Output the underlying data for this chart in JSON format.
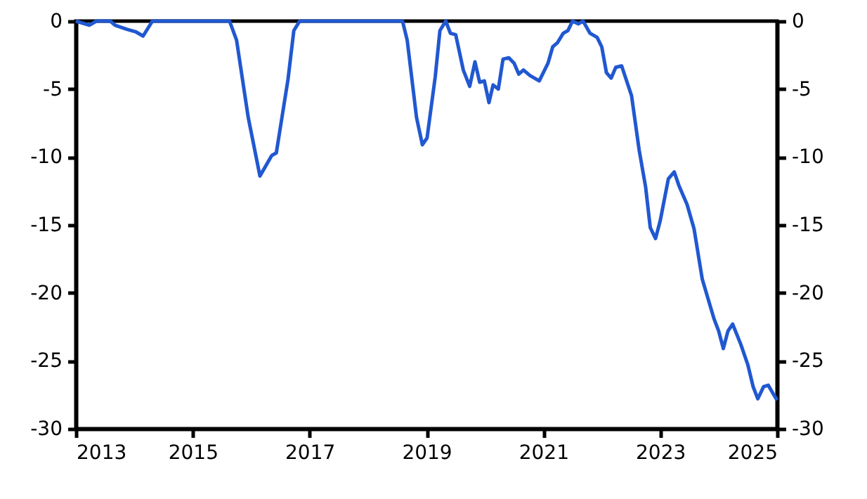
{
  "chart_data": {
    "type": "line",
    "x": [
      2013.0,
      2013.23,
      2013.35,
      2013.59,
      2013.67,
      2013.87,
      2014.03,
      2014.15,
      2014.31,
      2015.63,
      2015.75,
      2015.95,
      2016.15,
      2016.35,
      2016.43,
      2016.63,
      2016.73,
      2016.83,
      2018.59,
      2018.67,
      2018.83,
      2018.93,
      2019.01,
      2019.15,
      2019.23,
      2019.33,
      2019.41,
      2019.5,
      2019.63,
      2019.74,
      2019.83,
      2019.91,
      2019.99,
      2020.07,
      2020.14,
      2020.23,
      2020.31,
      2020.41,
      2020.5,
      2020.58,
      2020.66,
      2020.77,
      2020.93,
      2021.08,
      2021.16,
      2021.24,
      2021.34,
      2021.42,
      2021.5,
      2021.6,
      2021.68,
      2021.8,
      2021.92,
      2022.0,
      2022.08,
      2022.16,
      2022.24,
      2022.34,
      2022.51,
      2022.64,
      2022.75,
      2022.83,
      2022.92,
      2023.0,
      2023.14,
      2023.24,
      2023.32,
      2023.46,
      2023.58,
      2023.72,
      2023.92,
      2024.0,
      2024.08,
      2024.16,
      2024.24,
      2024.38,
      2024.5,
      2024.59,
      2024.67,
      2024.77,
      2024.85,
      2024.93,
      2025.0
    ],
    "series": [
      {
        "color": "#2158d1",
        "values": [
          0,
          -0.3,
          0,
          0,
          -0.3,
          -0.6,
          -0.8,
          -1.1,
          0,
          0,
          -1.4,
          -7.1,
          -11.4,
          -9.9,
          -9.7,
          -4.3,
          -0.7,
          0,
          0,
          -1.4,
          -7.1,
          -9.1,
          -8.6,
          -4.1,
          -0.7,
          0,
          -0.9,
          -1.0,
          -3.6,
          -4.8,
          -3.0,
          -4.5,
          -4.4,
          -6.0,
          -4.7,
          -5.0,
          -2.8,
          -2.7,
          -3.1,
          -3.9,
          -3.6,
          -4.0,
          -4.4,
          -3.1,
          -1.9,
          -1.6,
          -0.9,
          -0.7,
          0,
          -0.2,
          0,
          -0.9,
          -1.2,
          -1.9,
          -3.8,
          -4.2,
          -3.4,
          -3.3,
          -5.5,
          -9.5,
          -12.2,
          -15.2,
          -16.0,
          -14.7,
          -11.6,
          -11.1,
          -12.1,
          -13.5,
          -15.3,
          -19.0,
          -21.9,
          -22.8,
          -24.1,
          -22.8,
          -22.3,
          -23.8,
          -25.3,
          -26.9,
          -27.8,
          -26.9,
          -26.8,
          -27.4,
          -27.9
        ]
      }
    ],
    "xlim": [
      2013,
      2025
    ],
    "xticks": [
      2013,
      2015,
      2017,
      2019,
      2021,
      2023,
      2025
    ],
    "ylim": [
      -30,
      0
    ],
    "yticks": [
      -30,
      -25,
      -20,
      -15,
      -10,
      -5,
      0
    ],
    "y2lim": [
      -30,
      0
    ],
    "y2ticks": [
      -30,
      -25,
      -20,
      -15,
      -10,
      -5,
      0
    ],
    "grid": false,
    "line_style": "solid",
    "marker": "none"
  }
}
